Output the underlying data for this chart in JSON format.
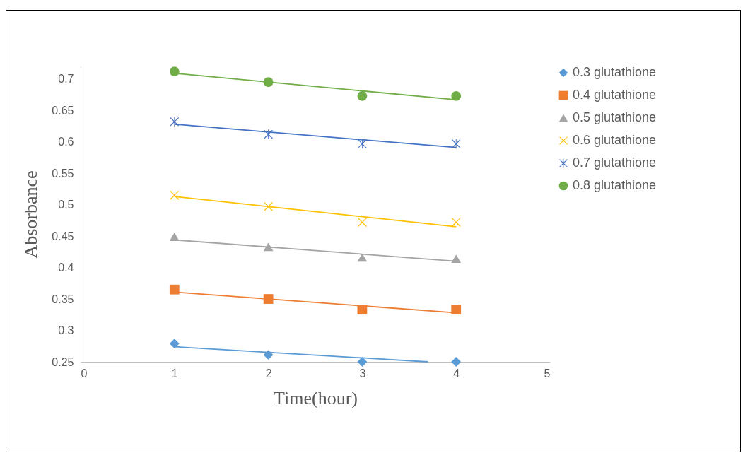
{
  "chart_data": {
    "type": "scatter",
    "xlabel": "Time(hour)",
    "ylabel": "Absorbance",
    "x": [
      1,
      2,
      3,
      4
    ],
    "xlim": [
      0,
      5
    ],
    "xticks": [
      0,
      1,
      2,
      3,
      4,
      5
    ],
    "ylim": [
      0.25,
      0.72
    ],
    "yticks": [
      0.25,
      0.3,
      0.35,
      0.4,
      0.45,
      0.5,
      0.55,
      0.6,
      0.65,
      0.7
    ],
    "grid": false,
    "legend": "right",
    "series": [
      {
        "name": "0.3 glutathione",
        "color": "#5b9bd5",
        "marker": "diamond",
        "values": [
          0.279,
          0.261,
          0.25,
          0.25
        ]
      },
      {
        "name": "0.4 glutathione",
        "color": "#ed7d31",
        "marker": "square",
        "values": [
          0.365,
          0.35,
          0.333,
          0.333
        ]
      },
      {
        "name": "0.5 glutathione",
        "color": "#a5a5a5",
        "marker": "triangle",
        "values": [
          0.449,
          0.433,
          0.416,
          0.414
        ]
      },
      {
        "name": "0.6 glutathione",
        "color": "#ffc000",
        "marker": "cross",
        "values": [
          0.515,
          0.497,
          0.472,
          0.472
        ]
      },
      {
        "name": "0.7 glutathione",
        "color": "#4472c4",
        "marker": "star",
        "values": [
          0.632,
          0.612,
          0.597,
          0.597
        ]
      },
      {
        "name": "0.8 glutathione",
        "color": "#70ad47",
        "marker": "circle",
        "values": [
          0.712,
          0.695,
          0.673,
          0.673
        ]
      },
      {
        "type": "line",
        "color": "#5b9bd5",
        "x": [
          1,
          3.7
        ],
        "values": [
          0.274,
          0.25
        ]
      },
      {
        "type": "line",
        "color": "#ed7d31",
        "x": [
          1,
          4
        ],
        "values": [
          0.361,
          0.328
        ]
      },
      {
        "type": "line",
        "color": "#a5a5a5",
        "x": [
          1,
          4
        ],
        "values": [
          0.444,
          0.41
        ]
      },
      {
        "type": "line",
        "color": "#ffc000",
        "x": [
          1,
          4
        ],
        "values": [
          0.513,
          0.465
        ]
      },
      {
        "type": "line",
        "color": "#4472c4",
        "x": [
          1,
          4
        ],
        "values": [
          0.628,
          0.591
        ]
      },
      {
        "type": "line",
        "color": "#70ad47",
        "x": [
          1,
          4
        ],
        "values": [
          0.709,
          0.667
        ]
      }
    ]
  }
}
